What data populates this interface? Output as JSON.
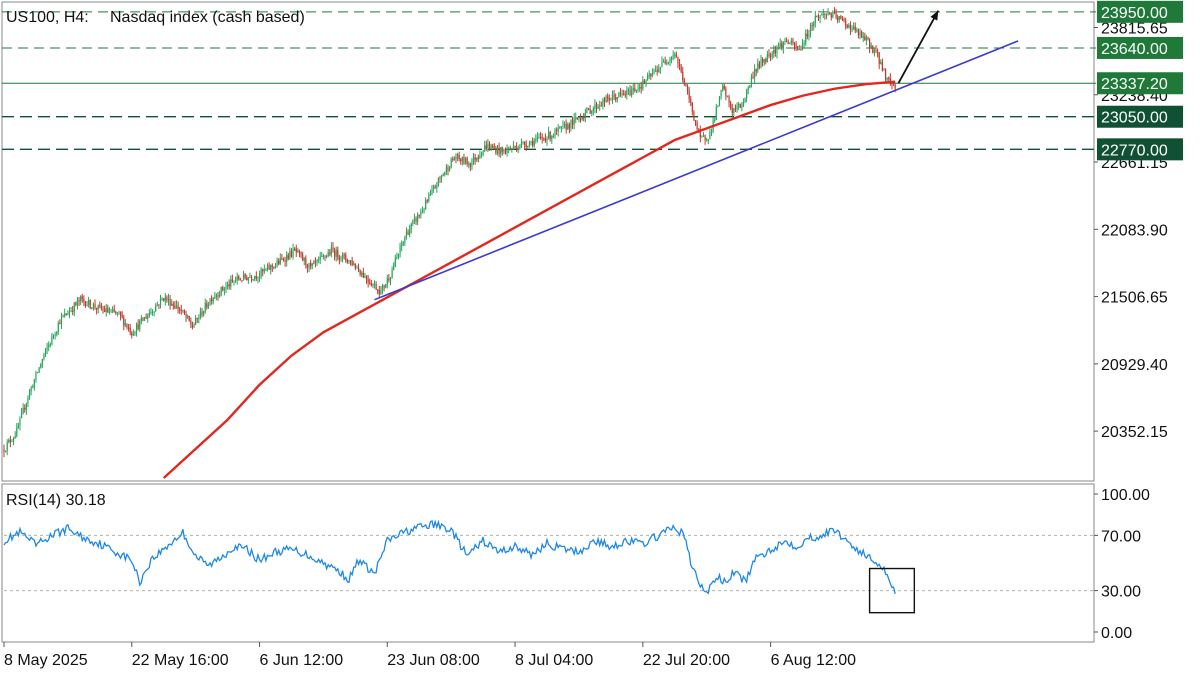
{
  "header": {
    "symbol_label": "US100, H4:",
    "instrument_label": "Nasdaq index (cash based)"
  },
  "rsi_panel": {
    "label": "RSI(14) 30.18"
  },
  "colors": {
    "bull_candle": "#26a65b",
    "bear_candle": "#c0392b",
    "moving_average": "#e0281e",
    "trendline": "#3b3bd0",
    "rsi_line": "#1e88e5",
    "level_box": "#1f7a3a",
    "level_box_dark": "#0f5132"
  },
  "chart_data": [
    {
      "type": "candlestick",
      "title": "US100, H4: Nasdaq index (cash based)",
      "ylim": [
        19950,
        24000
      ],
      "y_ticks": [
        {
          "value": 23815.65,
          "label": "23815.65"
        },
        {
          "value": 23238.4,
          "label": "23238.40"
        },
        {
          "value": 22661.15,
          "label": "22661.15"
        },
        {
          "value": 22083.9,
          "label": "22083.90"
        },
        {
          "value": 21506.65,
          "label": "21506.65"
        },
        {
          "value": 20929.4,
          "label": "20929.40"
        },
        {
          "value": 20352.15,
          "label": "20352.15"
        }
      ],
      "x_tick_labels": [
        "8 May 2025",
        "22 May 16:00",
        "6 Jun 12:00",
        "23 Jun 08:00",
        "8 Jul 04:00",
        "22 Jul 20:00",
        "6 Aug 12:00"
      ],
      "x_tick_index": [
        0,
        80,
        160,
        240,
        320,
        400,
        480
      ],
      "levels": [
        {
          "value": 23950.0,
          "label": "23950.00",
          "style": "dashed"
        },
        {
          "value": 23640.0,
          "label": "23640.00",
          "style": "dashed"
        },
        {
          "value": 23337.2,
          "label": "23337.20",
          "style": "solid"
        },
        {
          "value": 23050.0,
          "label": "23050.00",
          "style": "dashed-dark"
        },
        {
          "value": 22770.0,
          "label": "22770.00",
          "style": "dashed-dark"
        }
      ],
      "price_path": [
        [
          0,
          20200
        ],
        [
          8,
          20350
        ],
        [
          15,
          20650
        ],
        [
          25,
          21000
        ],
        [
          35,
          21300
        ],
        [
          48,
          21480
        ],
        [
          60,
          21400
        ],
        [
          72,
          21350
        ],
        [
          80,
          21200
        ],
        [
          90,
          21350
        ],
        [
          100,
          21500
        ],
        [
          110,
          21400
        ],
        [
          118,
          21250
        ],
        [
          130,
          21500
        ],
        [
          145,
          21650
        ],
        [
          160,
          21700
        ],
        [
          172,
          21800
        ],
        [
          182,
          21900
        ],
        [
          192,
          21750
        ],
        [
          205,
          21900
        ],
        [
          218,
          21800
        ],
        [
          228,
          21650
        ],
        [
          236,
          21550
        ],
        [
          242,
          21700
        ],
        [
          252,
          22050
        ],
        [
          262,
          22250
        ],
        [
          272,
          22500
        ],
        [
          282,
          22700
        ],
        [
          292,
          22650
        ],
        [
          302,
          22800
        ],
        [
          312,
          22750
        ],
        [
          322,
          22800
        ],
        [
          334,
          22850
        ],
        [
          344,
          22900
        ],
        [
          356,
          23000
        ],
        [
          366,
          23100
        ],
        [
          378,
          23200
        ],
        [
          390,
          23250
        ],
        [
          400,
          23330
        ],
        [
          412,
          23500
        ],
        [
          420,
          23600
        ],
        [
          428,
          23250
        ],
        [
          436,
          22850
        ],
        [
          442,
          22900
        ],
        [
          450,
          23300
        ],
        [
          456,
          23100
        ],
        [
          462,
          23150
        ],
        [
          470,
          23450
        ],
        [
          480,
          23600
        ],
        [
          490,
          23700
        ],
        [
          498,
          23620
        ],
        [
          508,
          23900
        ],
        [
          516,
          23940
        ],
        [
          524,
          23880
        ],
        [
          532,
          23800
        ],
        [
          540,
          23700
        ],
        [
          546,
          23600
        ],
        [
          552,
          23400
        ],
        [
          558,
          23300
        ]
      ],
      "moving_average": [
        [
          100,
          19950
        ],
        [
          120,
          20200
        ],
        [
          140,
          20450
        ],
        [
          160,
          20750
        ],
        [
          180,
          21000
        ],
        [
          200,
          21200
        ],
        [
          220,
          21350
        ],
        [
          240,
          21500
        ],
        [
          260,
          21650
        ],
        [
          280,
          21800
        ],
        [
          300,
          21950
        ],
        [
          320,
          22100
        ],
        [
          340,
          22250
        ],
        [
          360,
          22400
        ],
        [
          380,
          22550
        ],
        [
          400,
          22700
        ],
        [
          420,
          22850
        ],
        [
          440,
          22950
        ],
        [
          460,
          23050
        ],
        [
          480,
          23150
        ],
        [
          500,
          23230
        ],
        [
          520,
          23290
        ],
        [
          540,
          23330
        ],
        [
          558,
          23350
        ]
      ],
      "trendline": {
        "start": [
          232,
          21480
        ],
        "end": [
          635,
          23700
        ]
      },
      "arrow": {
        "start": [
          560,
          23337
        ],
        "end": [
          585,
          23960
        ]
      }
    },
    {
      "type": "line",
      "title": "RSI(14) 30.18",
      "ylim": [
        0,
        100
      ],
      "y_ticks": [
        {
          "value": 100.0,
          "label": "100.00"
        },
        {
          "value": 70.0,
          "label": "70.00"
        },
        {
          "value": 30.0,
          "label": "30.00"
        },
        {
          "value": 0.0,
          "label": "0.00"
        }
      ],
      "levels": [
        70,
        30
      ],
      "rsi_path": [
        [
          0,
          66
        ],
        [
          10,
          72
        ],
        [
          20,
          63
        ],
        [
          30,
          70
        ],
        [
          40,
          75
        ],
        [
          50,
          68
        ],
        [
          60,
          64
        ],
        [
          70,
          58
        ],
        [
          80,
          52
        ],
        [
          85,
          36
        ],
        [
          92,
          52
        ],
        [
          100,
          60
        ],
        [
          108,
          68
        ],
        [
          112,
          72
        ],
        [
          120,
          55
        ],
        [
          128,
          48
        ],
        [
          136,
          54
        ],
        [
          144,
          62
        ],
        [
          152,
          60
        ],
        [
          160,
          52
        ],
        [
          170,
          58
        ],
        [
          180,
          60
        ],
        [
          190,
          56
        ],
        [
          200,
          50
        ],
        [
          210,
          44
        ],
        [
          216,
          38
        ],
        [
          222,
          52
        ],
        [
          232,
          42
        ],
        [
          240,
          66
        ],
        [
          250,
          72
        ],
        [
          260,
          76
        ],
        [
          270,
          78
        ],
        [
          280,
          74
        ],
        [
          290,
          55
        ],
        [
          300,
          66
        ],
        [
          310,
          58
        ],
        [
          320,
          62
        ],
        [
          330,
          56
        ],
        [
          340,
          64
        ],
        [
          350,
          60
        ],
        [
          360,
          58
        ],
        [
          370,
          66
        ],
        [
          380,
          62
        ],
        [
          390,
          66
        ],
        [
          400,
          64
        ],
        [
          410,
          70
        ],
        [
          420,
          76
        ],
        [
          426,
          70
        ],
        [
          430,
          50
        ],
        [
          436,
          34
        ],
        [
          440,
          28
        ],
        [
          446,
          40
        ],
        [
          452,
          36
        ],
        [
          458,
          44
        ],
        [
          464,
          36
        ],
        [
          470,
          52
        ],
        [
          480,
          60
        ],
        [
          490,
          66
        ],
        [
          496,
          62
        ],
        [
          504,
          68
        ],
        [
          512,
          70
        ],
        [
          520,
          74
        ],
        [
          528,
          66
        ],
        [
          536,
          58
        ],
        [
          544,
          52
        ],
        [
          550,
          48
        ],
        [
          554,
          38
        ],
        [
          558,
          30
        ]
      ],
      "focus_box": {
        "x_range": [
          542,
          570
        ],
        "y_range": [
          14,
          46
        ]
      }
    }
  ]
}
